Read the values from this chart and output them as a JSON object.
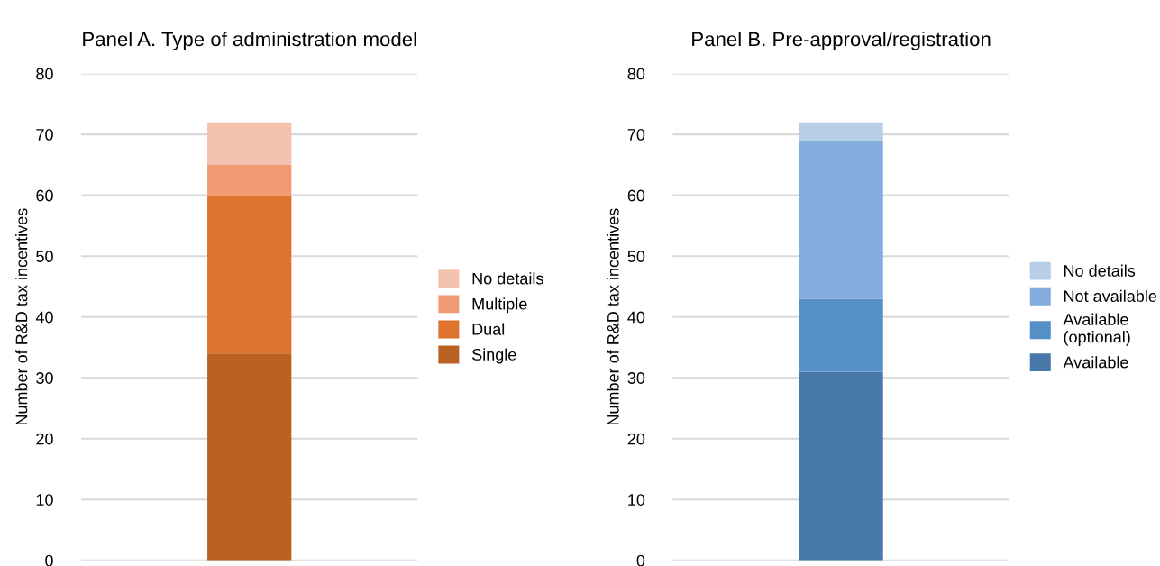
{
  "chart_data": [
    {
      "type": "bar",
      "title": "Panel A. Type of administration model",
      "ylabel": "Number of R&D tax incentives",
      "categories": [
        null
      ],
      "stacked": true,
      "ylim": [
        0,
        80
      ],
      "yticks": [
        0,
        10,
        20,
        30,
        40,
        50,
        60,
        70,
        80
      ],
      "grid": "y",
      "legend": "right",
      "series": [
        {
          "name": "Single",
          "color": "#ba6223",
          "values": [
            34
          ]
        },
        {
          "name": "Dual",
          "color": "#de732d",
          "values": [
            26
          ]
        },
        {
          "name": "Multiple",
          "color": "#f09a72",
          "values": [
            5
          ]
        },
        {
          "name": "No details",
          "color": "#f5c2b0",
          "values": [
            7
          ]
        }
      ]
    },
    {
      "type": "bar",
      "title": "Panel B. Pre-approval/registration",
      "ylabel": "Number of R&D tax incentives",
      "categories": [
        null
      ],
      "stacked": true,
      "ylim": [
        0,
        80
      ],
      "yticks": [
        0,
        10,
        20,
        30,
        40,
        50,
        60,
        70,
        80
      ],
      "grid": "y",
      "legend": "right",
      "series": [
        {
          "name": "Available",
          "color": "#4878a8",
          "values": [
            31
          ]
        },
        {
          "name": "Available\n(optional)",
          "color": "#5490c6",
          "values": [
            12
          ]
        },
        {
          "name": "Not available",
          "color": "#84acdc",
          "values": [
            26
          ]
        },
        {
          "name": "No details",
          "color": "#b8cde8",
          "values": [
            3
          ]
        }
      ]
    }
  ]
}
